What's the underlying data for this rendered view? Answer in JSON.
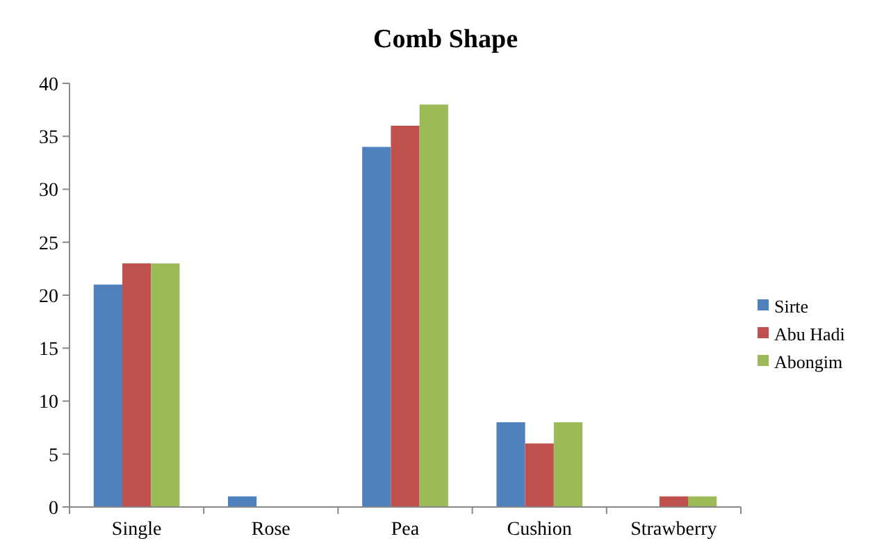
{
  "chart_data": {
    "type": "bar",
    "title": "Comb Shape",
    "categories": [
      "Single",
      "Rose",
      "Pea",
      "Cushion",
      "Strawberry"
    ],
    "series": [
      {
        "name": "Sirte",
        "color": "#4f81bd",
        "values": [
          21,
          1,
          34,
          8,
          0
        ]
      },
      {
        "name": "Abu Hadi",
        "color": "#c0504d",
        "values": [
          23,
          0,
          36,
          6,
          1
        ]
      },
      {
        "name": "Abongim",
        "color": "#9bbb59",
        "values": [
          23,
          0,
          38,
          8,
          1
        ]
      }
    ],
    "ylim": [
      0,
      40
    ],
    "yticks": [
      0,
      5,
      10,
      15,
      20,
      25,
      30,
      35,
      40
    ],
    "grid": false,
    "legend": "right"
  }
}
